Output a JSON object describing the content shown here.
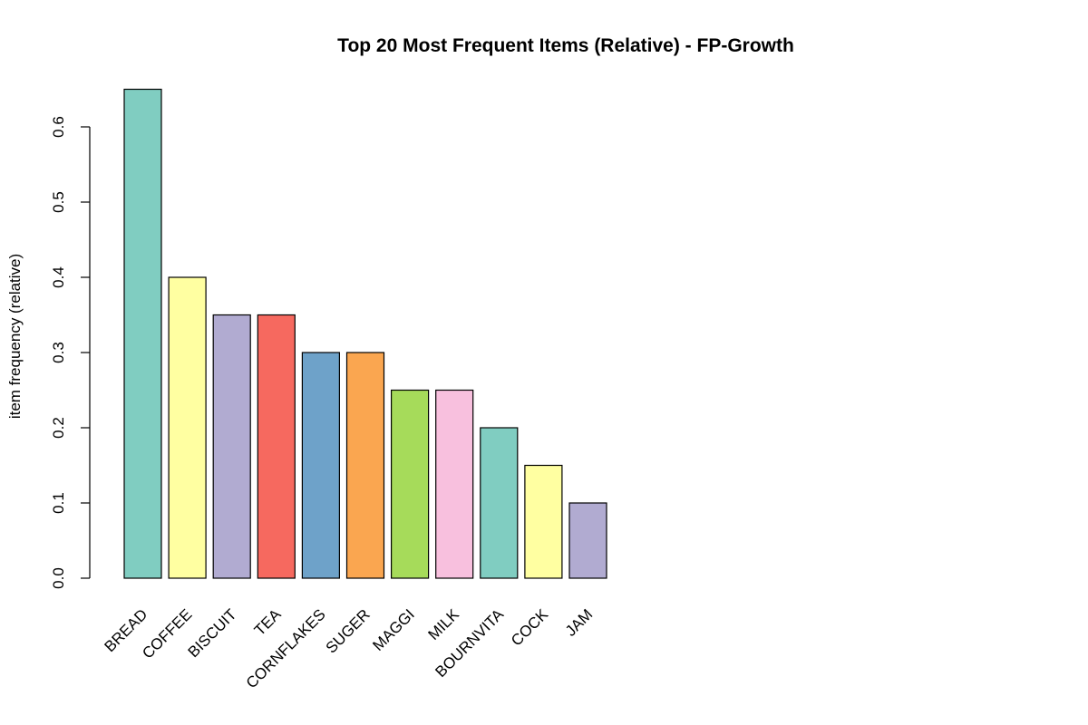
{
  "chart_data": {
    "type": "bar",
    "title": "Top 20 Most Frequent Items (Relative) - FP-Growth",
    "xlabel": "",
    "ylabel": "item frequency (relative)",
    "ylim": [
      0,
      0.65
    ],
    "yticks": [
      "0.0",
      "0.1",
      "0.2",
      "0.3",
      "0.4",
      "0.5",
      "0.6"
    ],
    "ytick_values": [
      0,
      0.1,
      0.2,
      0.3,
      0.4,
      0.5,
      0.6
    ],
    "categories": [
      "BREAD",
      "COFFEE",
      "BISCUIT",
      "TEA",
      "CORNFLAKES",
      "SUGER",
      "MAGGI",
      "MILK",
      "BOURNVITA",
      "COCK",
      "JAM"
    ],
    "values": [
      0.65,
      0.4,
      0.35,
      0.35,
      0.3,
      0.3,
      0.25,
      0.25,
      0.2,
      0.15,
      0.1
    ],
    "colors": [
      "#80CDC1",
      "#FFFFA1",
      "#B1ABD1",
      "#F6695F",
      "#6EA2C9",
      "#FAA650",
      "#A6DB5A",
      "#F8C0DE",
      "#80CDC1",
      "#FFFFA1",
      "#B1ABD1"
    ],
    "grid": false,
    "legend": "none"
  }
}
